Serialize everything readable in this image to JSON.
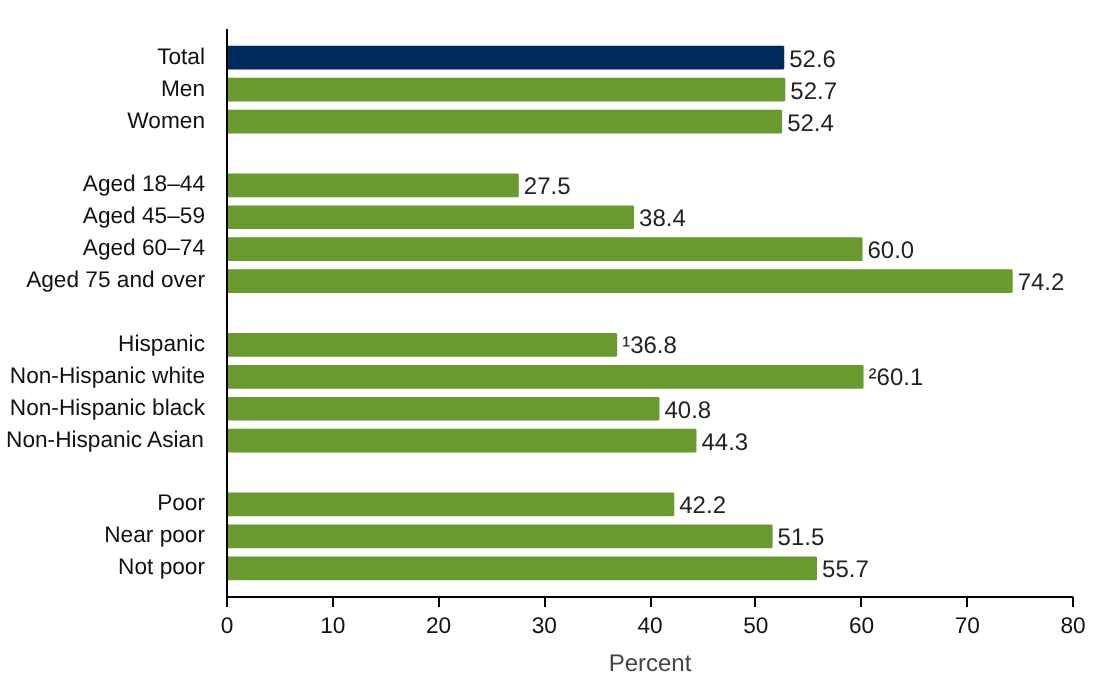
{
  "chart_data": {
    "type": "bar",
    "orientation": "horizontal",
    "xlabel": "Percent",
    "categories": [
      "Total",
      "Men",
      "Women",
      null,
      "Aged 18–44",
      "Aged 45–59",
      "Aged 60–74",
      "Aged 75 and over",
      null,
      "Hispanic",
      "Non-Hispanic white",
      "Non-Hispanic black",
      "Non-Hispanic Asian",
      null,
      "Poor",
      "Near poor",
      "Not poor"
    ],
    "values": [
      52.6,
      52.7,
      52.4,
      null,
      27.5,
      38.4,
      60.0,
      74.2,
      null,
      36.8,
      60.1,
      40.8,
      44.3,
      null,
      42.2,
      51.5,
      55.7
    ],
    "value_labels": [
      "52.6",
      "52.7",
      "52.4",
      null,
      "27.5",
      "38.4",
      "60.0",
      "74.2",
      null,
      "¹36.8",
      "²60.1",
      "40.8",
      "44.3",
      null,
      "42.2",
      "51.5",
      "55.7"
    ],
    "colors": [
      "#002b5c",
      "#6a9a2f",
      "#6a9a2f",
      null,
      "#6a9a2f",
      "#6a9a2f",
      "#6a9a2f",
      "#6a9a2f",
      null,
      "#6a9a2f",
      "#6a9a2f",
      "#6a9a2f",
      "#6a9a2f",
      null,
      "#6a9a2f",
      "#6a9a2f",
      "#6a9a2f"
    ],
    "xlim": [
      0,
      80
    ],
    "xticks": [
      0,
      10,
      20,
      30,
      40,
      50,
      60,
      70,
      80
    ],
    "grid": false
  }
}
